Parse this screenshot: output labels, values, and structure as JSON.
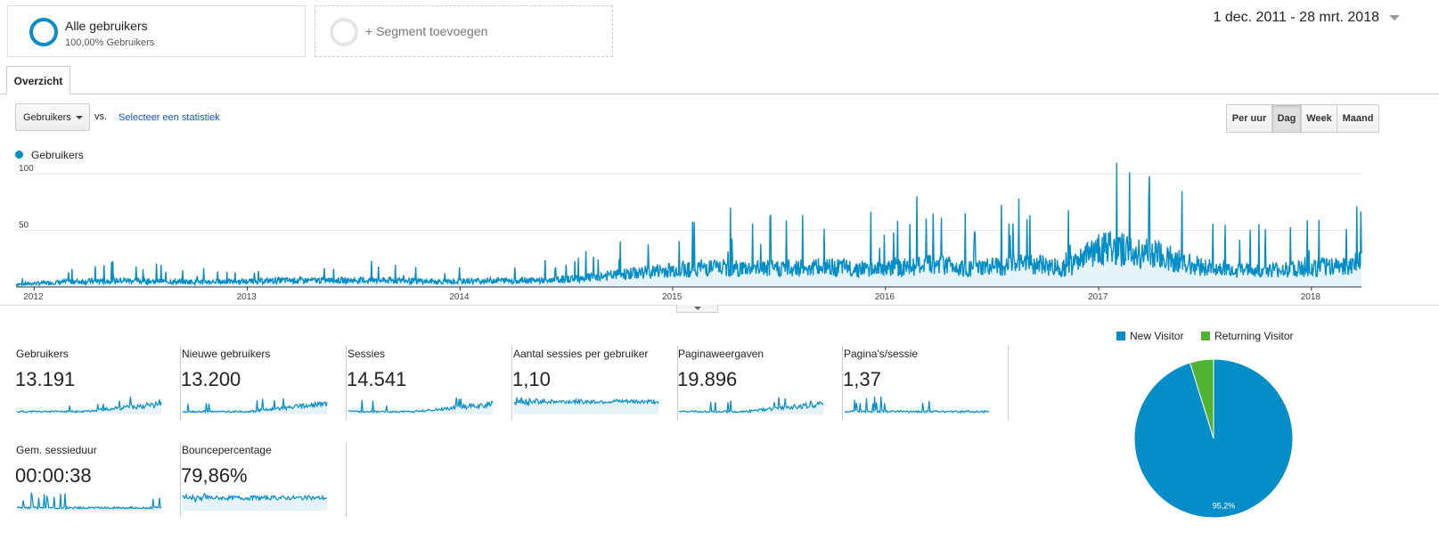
{
  "segments": {
    "all": {
      "title": "Alle gebruikers",
      "subtitle": "100,00% Gebruikers"
    },
    "add": {
      "label": "+ Segment toevoegen"
    }
  },
  "date_range": "1 dec. 2011 - 28 mrt. 2018",
  "tab": {
    "label": "Overzicht"
  },
  "metric_select": {
    "value": "Gebruikers",
    "vs_label": "vs.",
    "compare_link": "Selecteer een statistiek"
  },
  "time_buttons": [
    {
      "label": "Per uur",
      "active": false
    },
    {
      "label": "Dag",
      "active": true
    },
    {
      "label": "Week",
      "active": false
    },
    {
      "label": "Maand",
      "active": false
    }
  ],
  "colors": {
    "primary": "#058dc7",
    "secondary": "#50b432",
    "link": "#1155cc"
  },
  "chart_data": [
    {
      "type": "area",
      "legend": "Gebruikers",
      "y_ticks": [
        "100",
        "50"
      ],
      "ylim": [
        0,
        100
      ],
      "x_ticks": [
        "2012",
        "2013",
        "2014",
        "2015",
        "2016",
        "2017",
        "2018"
      ],
      "x_range": [
        "2011-12-01",
        "2018-03-28"
      ],
      "grid": true,
      "points": [
        {
          "x": "2011-12-01",
          "y": 2
        },
        {
          "x": "2012-03-01",
          "y": 4
        },
        {
          "x": "2012-06-01",
          "y": 5
        },
        {
          "x": "2012-09-01",
          "y": 4
        },
        {
          "x": "2012-12-01",
          "y": 4
        },
        {
          "x": "2013-03-01",
          "y": 5
        },
        {
          "x": "2013-06-01",
          "y": 5
        },
        {
          "x": "2013-09-01",
          "y": 5
        },
        {
          "x": "2013-12-01",
          "y": 4
        },
        {
          "x": "2014-03-01",
          "y": 5
        },
        {
          "x": "2014-06-01",
          "y": 5
        },
        {
          "x": "2014-09-01",
          "y": 8
        },
        {
          "x": "2014-12-01",
          "y": 12
        },
        {
          "x": "2015-03-01",
          "y": 15
        },
        {
          "x": "2015-04-10",
          "y": 70
        },
        {
          "x": "2015-06-01",
          "y": 38
        },
        {
          "x": "2015-09-01",
          "y": 15
        },
        {
          "x": "2015-12-01",
          "y": 14
        },
        {
          "x": "2016-01-15",
          "y": 48
        },
        {
          "x": "2016-04-01",
          "y": 18
        },
        {
          "x": "2016-06-01",
          "y": 40
        },
        {
          "x": "2016-09-01",
          "y": 18
        },
        {
          "x": "2016-11-10",
          "y": 68
        },
        {
          "x": "2017-01-01",
          "y": 30
        },
        {
          "x": "2017-04-01",
          "y": 25
        },
        {
          "x": "2017-07-01",
          "y": 15
        },
        {
          "x": "2017-10-01",
          "y": 12
        },
        {
          "x": "2017-12-25",
          "y": 59
        },
        {
          "x": "2018-03-28",
          "y": 18
        }
      ]
    },
    {
      "type": "pie",
      "legend": [
        "New Visitor",
        "Returning Visitor"
      ],
      "slices": [
        {
          "name": "New Visitor",
          "value": 95.2,
          "label": "95,2%",
          "color": "#058dc7"
        },
        {
          "name": "Returning Visitor",
          "value": 4.8,
          "label": "",
          "color": "#50b432"
        }
      ]
    }
  ],
  "scorecards": [
    {
      "label": "Gebruikers",
      "value": "13.191",
      "spark": "users"
    },
    {
      "label": "Nieuwe gebruikers",
      "value": "13.200",
      "spark": "users"
    },
    {
      "label": "Sessies",
      "value": "14.541",
      "spark": "users"
    },
    {
      "label": "Aantal sessies per gebruiker",
      "value": "1,10",
      "spark": "flat"
    },
    {
      "label": "Paginaweergaven",
      "value": "19.896",
      "spark": "users"
    },
    {
      "label": "Pagina's/sessie",
      "value": "1,37",
      "spark": "early"
    },
    {
      "label": "Gem. sessieduur",
      "value": "00:00:38",
      "spark": "early"
    },
    {
      "label": "Bouncepercentage",
      "value": "79,86%",
      "spark": "flat"
    }
  ]
}
